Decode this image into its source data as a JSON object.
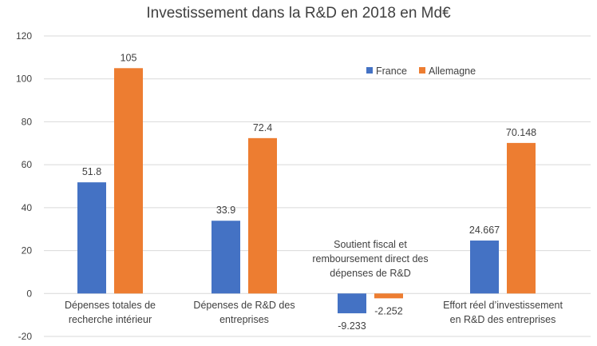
{
  "chart_data": {
    "type": "bar",
    "title": "Investissement dans la R&D en 2018 en Md€",
    "categories": [
      [
        "Dépenses totales de",
        "recherche intérieur"
      ],
      [
        "Dépenses de R&D des",
        "entreprises"
      ],
      [
        "Soutient fiscal et",
        "remboursement direct des",
        "dépenses de R&D"
      ],
      [
        "Effort réel d’investissement",
        "en R&D des entreprises"
      ]
    ],
    "series": [
      {
        "name": "France",
        "color": "#4472c4",
        "values": [
          51.8,
          33.9,
          -9.233,
          24.667
        ],
        "labels": [
          "51.8",
          "33.9",
          "-9.233",
          "24.667"
        ]
      },
      {
        "name": "Allemagne",
        "color": "#ed7d31",
        "values": [
          105,
          72.4,
          -2.252,
          70.148
        ],
        "labels": [
          "105",
          "72.4",
          "-2.252",
          "70.148"
        ]
      }
    ],
    "ylim": [
      -20,
      120
    ],
    "yticks": [
      -20,
      0,
      20,
      40,
      60,
      80,
      100,
      120
    ],
    "grid": true,
    "legend_position": "top-right"
  }
}
